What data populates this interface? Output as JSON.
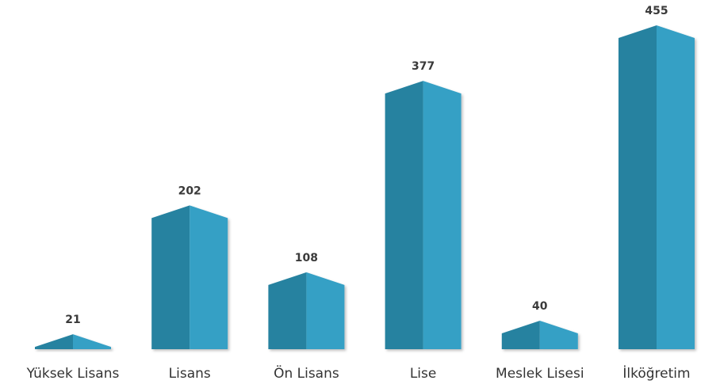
{
  "chart_data": {
    "type": "bar",
    "categories": [
      "Yüksek Lisans",
      "Lisans",
      "Ön Lisans",
      "Lise",
      "Meslek Lisesi",
      "İlköğretim"
    ],
    "values": [
      21,
      202,
      108,
      377,
      40,
      455
    ],
    "title": "",
    "xlabel": "",
    "ylabel": "",
    "ylim": [
      0,
      455
    ],
    "grid": false,
    "legend": "none",
    "data_labels": true,
    "colors": {
      "face_left": "#2882a0",
      "face_right": "#35a0c5"
    }
  }
}
